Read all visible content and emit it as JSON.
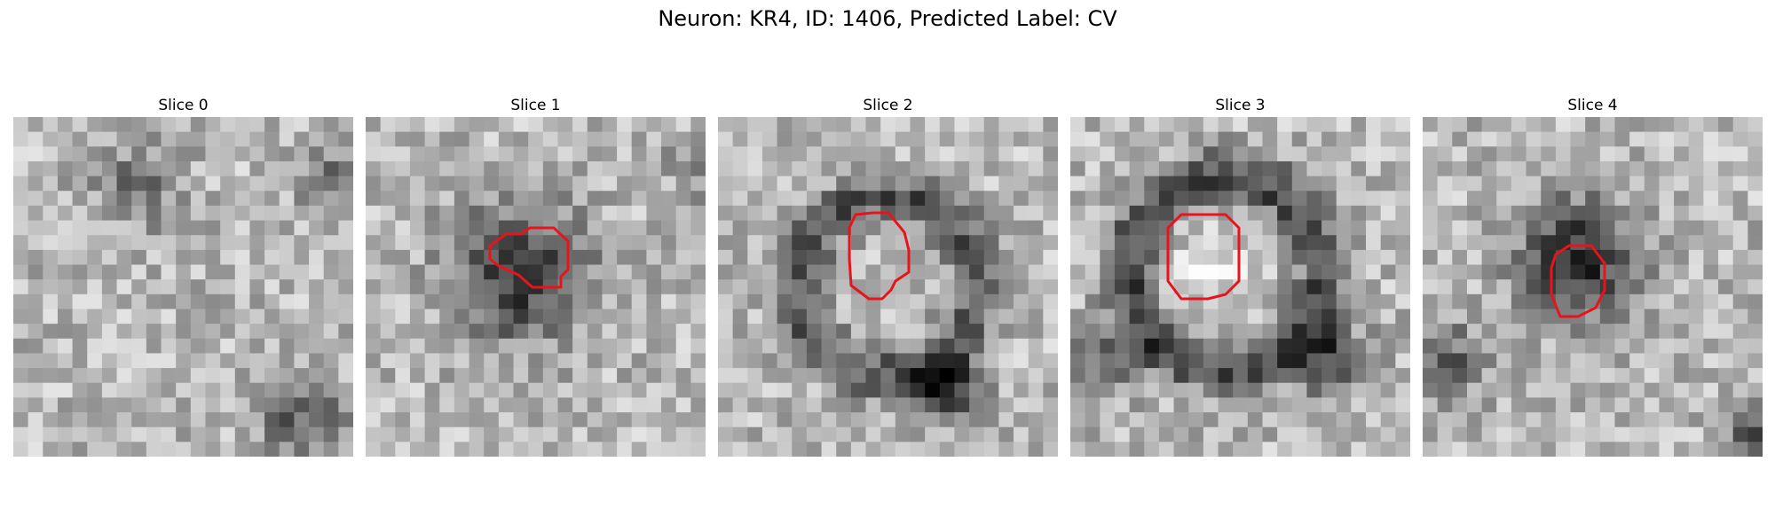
{
  "figure": {
    "title": "Neuron: KR4, ID: 1406, Predicted Label: CV"
  },
  "contour_color": "#e8141b",
  "panels": [
    {
      "title": "Slice 0",
      "pattern": "noise"
    },
    {
      "title": "Slice 1",
      "pattern": "dark-blob"
    },
    {
      "title": "Slice 2",
      "pattern": "ring"
    },
    {
      "title": "Slice 3",
      "pattern": "bright-ring"
    },
    {
      "title": "Slice 4",
      "pattern": "dark-blob-upper"
    }
  ]
}
